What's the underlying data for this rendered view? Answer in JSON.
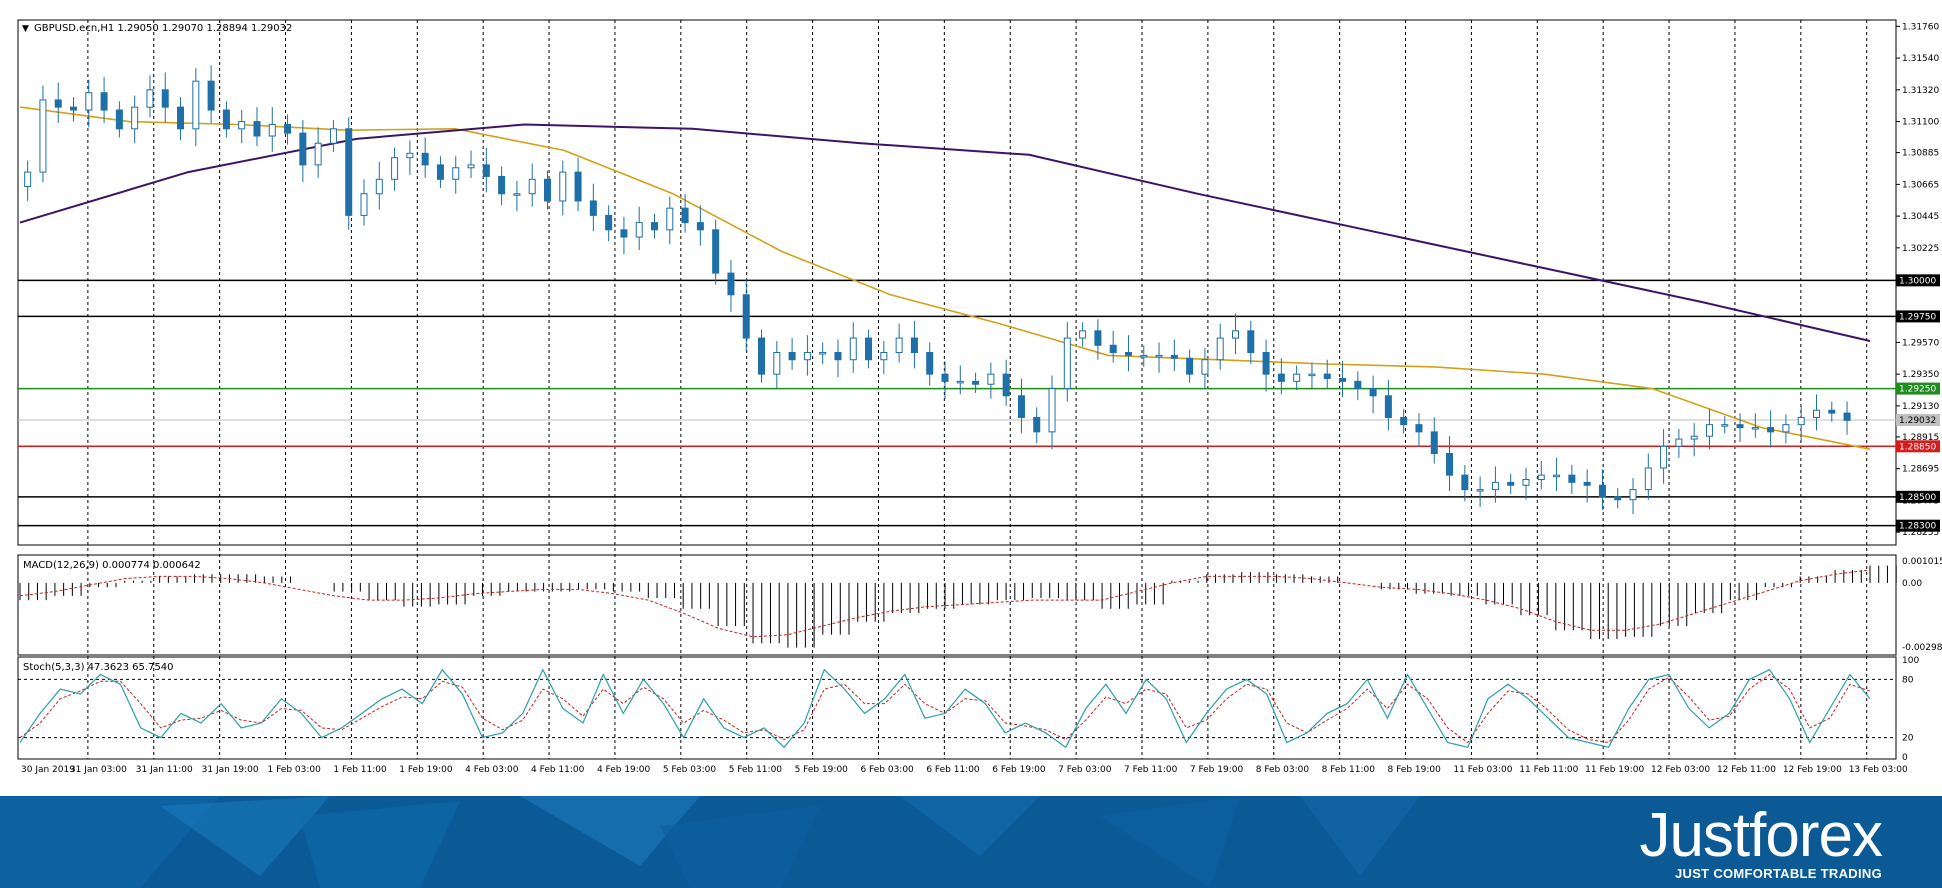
{
  "chart_data": [
    {
      "type": "candlestick",
      "name": "main-price",
      "title": "GBPUSD.ecn,H1  1.29050 1.29070 1.28894 1.29032",
      "y_ticks": [
        "1.31760",
        "1.31540",
        "1.31320",
        "1.31100",
        "1.30885",
        "1.30665",
        "1.30445",
        "1.30225",
        "1.29570",
        "1.29350",
        "1.29130",
        "1.28915",
        "1.28695",
        "1.28475",
        "1.28255"
      ],
      "ylim": [
        1.2818,
        1.3179
      ],
      "x_labels": [
        "30 Jan 2019",
        "31 Jan 03:00",
        "31 Jan 11:00",
        "31 Jan 19:00",
        "1 Feb 03:00",
        "1 Feb 11:00",
        "1 Feb 19:00",
        "4 Feb 03:00",
        "4 Feb 11:00",
        "4 Feb 19:00",
        "5 Feb 03:00",
        "5 Feb 11:00",
        "5 Feb 19:00",
        "6 Feb 03:00",
        "6 Feb 11:00",
        "6 Feb 19:00",
        "7 Feb 03:00",
        "7 Feb 11:00",
        "7 Feb 19:00",
        "8 Feb 03:00",
        "8 Feb 11:00",
        "8 Feb 19:00",
        "11 Feb 03:00",
        "11 Feb 11:00",
        "11 Feb 19:00",
        "12 Feb 03:00",
        "12 Feb 11:00",
        "12 Feb 19:00",
        "13 Feb 03:00"
      ],
      "close_path": [
        1.3065,
        1.3075,
        1.3125,
        1.312,
        1.3118,
        1.313,
        1.3118,
        1.3105,
        1.312,
        1.3132,
        1.312,
        1.3105,
        1.3138,
        1.3118,
        1.3105,
        1.311,
        1.31,
        1.3108,
        1.3102,
        1.308,
        1.3095,
        1.3105,
        1.3045,
        1.306,
        1.307,
        1.3085,
        1.3088,
        1.308,
        1.307,
        1.3078,
        1.308,
        1.3072,
        1.306,
        1.306,
        1.307,
        1.3055,
        1.3075,
        1.3055,
        1.3045,
        1.3035,
        1.303,
        1.304,
        1.3035,
        1.305,
        1.304,
        1.3035,
        1.3005,
        1.299,
        1.296,
        1.2935,
        1.295,
        1.2945,
        1.295,
        1.295,
        1.2945,
        1.296,
        1.2945,
        1.295,
        1.296,
        1.295,
        1.2935,
        1.293,
        1.293,
        1.2928,
        1.2935,
        1.292,
        1.2905,
        1.2895,
        1.2925,
        1.296,
        1.2965,
        1.2955,
        1.295,
        1.2948,
        1.2948,
        1.2948,
        1.2946,
        1.2935,
        1.2945,
        1.296,
        1.2965,
        1.295,
        1.2935,
        1.293,
        1.2935,
        1.2935,
        1.2932,
        1.293,
        1.2925,
        1.292,
        1.2905,
        1.29,
        1.2895,
        1.288,
        1.2865,
        1.2855,
        1.2855,
        1.286,
        1.2858,
        1.2862,
        1.2865,
        1.2865,
        1.286,
        1.2858,
        1.285,
        1.2848,
        1.2855,
        1.287,
        1.2885,
        1.289,
        1.2892,
        1.29,
        1.29,
        1.2898,
        1.2898,
        1.2895,
        1.29,
        1.2905,
        1.291,
        1.2908,
        1.2903
      ],
      "levels": [
        {
          "label": "1.30000",
          "value": 1.3,
          "color": "#000000"
        },
        {
          "label": "1.29750",
          "value": 1.2975,
          "color": "#000000"
        },
        {
          "label": "1.29250",
          "value": 1.2925,
          "color": "#1e8c1e"
        },
        {
          "label": "1.29032",
          "value": 1.29032,
          "color": "#c0c0c0"
        },
        {
          "label": "1.28850",
          "value": 1.2885,
          "color": "#d41c1c"
        },
        {
          "label": "1.28500",
          "value": 1.285,
          "color": "#000000"
        },
        {
          "label": "1.28300",
          "value": 1.283,
          "color": "#000000"
        }
      ],
      "ma_fast": [
        1.312,
        1.311,
        1.3108,
        1.3104,
        1.3105,
        1.309,
        1.306,
        1.302,
        1.299,
        1.297,
        1.2948,
        1.2945,
        1.2942,
        1.294,
        1.2935,
        1.2925,
        1.2898,
        1.2883
      ],
      "ma_slow": [
        1.304,
        1.3075,
        1.3098,
        1.3108,
        1.3105,
        1.3095,
        1.3087,
        1.306,
        1.3035,
        1.301,
        1.2985,
        1.2958
      ],
      "colors": {
        "candle": "#1f6fa8",
        "ma_fast": "#d4a017",
        "ma_slow": "#3c1466",
        "grid": "#000000"
      }
    },
    {
      "type": "bar",
      "name": "macd",
      "title": "MACD(12,26,9) 0.000774 0.000642",
      "y_ticks": [
        "0.001015",
        "0.00",
        "-0.002982"
      ],
      "ylim": [
        -0.00325,
        0.0012
      ],
      "values": [
        -0.0008,
        -0.0006,
        -0.0002,
        0.0001,
        0.0003,
        0.0004,
        0.0004,
        0.0003,
        0.0,
        -0.0004,
        -0.0008,
        -0.0011,
        -0.001,
        -0.0006,
        -0.0004,
        -0.0004,
        -0.0003,
        -0.0004,
        -0.0007,
        -0.0012,
        -0.002,
        -0.0028,
        -0.003,
        -0.0024,
        -0.0018,
        -0.0014,
        -0.0012,
        -0.001,
        -0.0008,
        -0.0007,
        -0.0008,
        -0.0012,
        -0.001,
        0.0001,
        0.0004,
        0.0005,
        0.0004,
        0.0003,
        0.0,
        -0.0003,
        -0.0005,
        -0.0006,
        -0.001,
        -0.0015,
        -0.0022,
        -0.0026,
        -0.0025,
        -0.002,
        -0.0014,
        -0.0008,
        -0.0002,
        0.0003,
        0.0006,
        0.0008
      ],
      "signal": [
        -0.0006,
        -0.0004,
        -0.0001,
        0.0002,
        0.0003,
        0.0003,
        0.0002,
        0.0,
        -0.0003,
        -0.0006,
        -0.0008,
        -0.0008,
        -0.0007,
        -0.0005,
        -0.0004,
        -0.0003,
        -0.0003,
        -0.0005,
        -0.0008,
        -0.0014,
        -0.0021,
        -0.0025,
        -0.0024,
        -0.002,
        -0.0016,
        -0.0013,
        -0.0011,
        -0.001,
        -0.0009,
        -0.0008,
        -0.0008,
        -0.0008,
        -0.0004,
        0.0,
        0.0003,
        0.0003,
        0.0003,
        0.0002,
        0.0,
        -0.0002,
        -0.0003,
        -0.0005,
        -0.0008,
        -0.0012,
        -0.0018,
        -0.0022,
        -0.0022,
        -0.0019,
        -0.0014,
        -0.0009,
        -0.0004,
        0.0001,
        0.0004,
        0.0006
      ],
      "colors": {
        "hist": "#000000",
        "signal": "#cc2020"
      }
    },
    {
      "type": "line",
      "name": "stochastic",
      "title": "Stoch(5,3,3) 47.3623 65.7540",
      "y_ticks": [
        "100",
        "80",
        "20",
        "0"
      ],
      "ylim": [
        0,
        100
      ],
      "levels": [
        80,
        20
      ],
      "series": [
        {
          "values": [
            15,
            45,
            70,
            65,
            85,
            75,
            30,
            20,
            45,
            35,
            55,
            30,
            35,
            60,
            45,
            20,
            30,
            45,
            60,
            70,
            55,
            90,
            65,
            20,
            25,
            45,
            90,
            50,
            35,
            85,
            45,
            80,
            55,
            20,
            60,
            30,
            20,
            30,
            10,
            35,
            90,
            70,
            45,
            60,
            85,
            40,
            45,
            70,
            55,
            25,
            35,
            25,
            10,
            50,
            75,
            45,
            80,
            60,
            15,
            45,
            70,
            80,
            65,
            15,
            25,
            45,
            55,
            80,
            40,
            85,
            50,
            15,
            10,
            60,
            75,
            60,
            40,
            20,
            15,
            10,
            50,
            80,
            85,
            50,
            30,
            45,
            80,
            90,
            60,
            15,
            50,
            85,
            60
          ]
        },
        {
          "values": [
            20,
            35,
            60,
            68,
            78,
            78,
            55,
            30,
            38,
            40,
            48,
            38,
            35,
            50,
            48,
            30,
            28,
            40,
            52,
            62,
            60,
            78,
            72,
            40,
            28,
            38,
            70,
            60,
            42,
            70,
            55,
            72,
            60,
            35,
            48,
            38,
            25,
            28,
            18,
            28,
            70,
            75,
            55,
            55,
            75,
            55,
            45,
            60,
            58,
            35,
            32,
            28,
            18,
            38,
            62,
            55,
            70,
            65,
            30,
            38,
            60,
            75,
            70,
            35,
            25,
            38,
            50,
            70,
            50,
            75,
            60,
            30,
            15,
            45,
            68,
            65,
            48,
            28,
            18,
            15,
            38,
            70,
            82,
            62,
            38,
            42,
            70,
            85,
            70,
            30,
            40,
            75,
            68
          ]
        }
      ],
      "colors": {
        "main": "#2aa0a8",
        "signal": "#cc2020"
      }
    }
  ],
  "brand": {
    "logo": "Justforex",
    "slogan": "JUST COMFORTABLE TRADING"
  }
}
